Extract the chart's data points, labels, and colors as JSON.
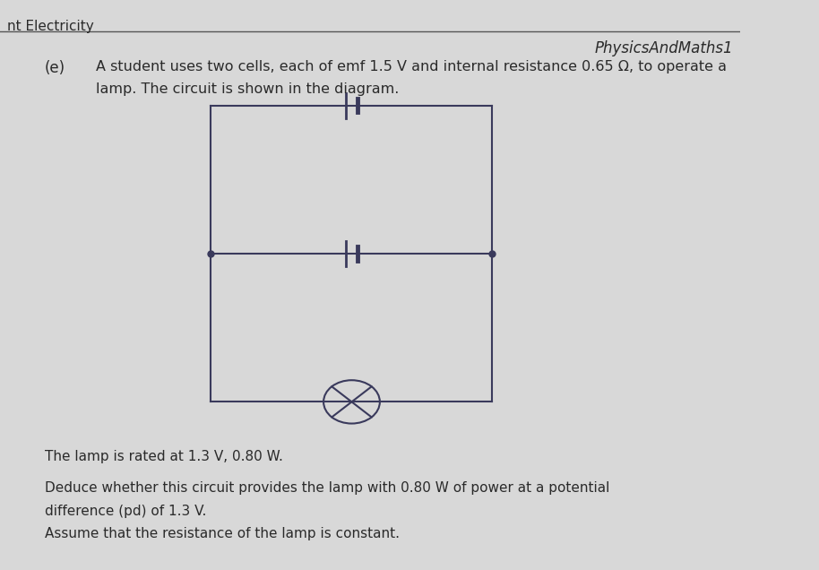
{
  "bg_color": "#d8d8d8",
  "header_text": "nt Electricity",
  "header_right_text": "PhysicsAndMaths1",
  "part_label": "(e)",
  "intro_line1": "A student uses two cells, each of emf 1.5 V and internal resistance 0.65 Ω, to operate a",
  "intro_line2": "lamp. The circuit is shown in the diagram.",
  "rated_text": "The lamp is rated at 1.3 V, 0.80 W.",
  "deduce_line1": "Deduce whether this circuit provides the lamp with 0.80 W of power at a potential",
  "deduce_line2": "difference (pd) of 1.3 V.",
  "assume_text": "Assume that the resistance of the lamp is constant.",
  "line_color": "#3a3a5c",
  "dot_color": "#3a3a5c",
  "text_color": "#2a2a2a",
  "separator_color": "#555555",
  "font_size_header": 11,
  "font_size_part": 12,
  "font_size_body": 11.5,
  "font_size_rated": 11,
  "font_size_right": 12
}
